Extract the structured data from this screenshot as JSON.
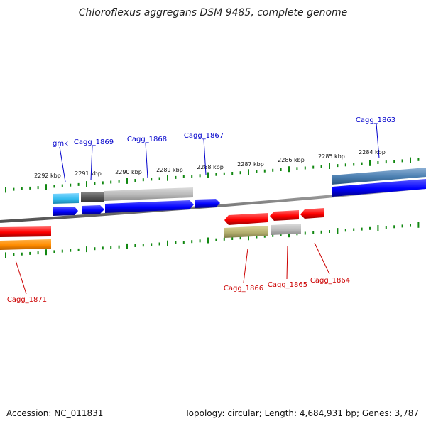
{
  "title": "Chloroflexus aggregans DSM 9485, complete genome",
  "footer": {
    "accession": "Accession: NC_011831",
    "summary": "Topology: circular; Length: 4,684,931 bp; Genes: 3,787"
  },
  "colors": {
    "plus_label": "#0000cc",
    "minus_label": "#cc0000",
    "tick": "#118811",
    "backbone": "#808080",
    "cds_forward": "#0000ff",
    "cds_reverse": "#ff0000",
    "orange_track": "#ff8c00",
    "olive_track": "#b5b070",
    "light_gray": "#b8b8b8",
    "dark_gray": "#555555",
    "cyan": "#33bbee",
    "steel_blue": "#4a7eb0"
  },
  "kbp_labels": [
    "2292 kbp",
    "2291 kbp",
    "2290 kbp",
    "2289 kbp",
    "2288 kbp",
    "2287 kbp",
    "2286 kbp",
    "2285 kbp",
    "2284 kbp"
  ],
  "gene_labels_plus": [
    "gmk",
    "Cagg_1869",
    "Cagg_1868",
    "Cagg_1867",
    "Cagg_1863"
  ],
  "gene_labels_minus": [
    "Cagg_1871",
    "Cagg_1866",
    "Cagg_1865",
    "Cagg_1864"
  ]
}
